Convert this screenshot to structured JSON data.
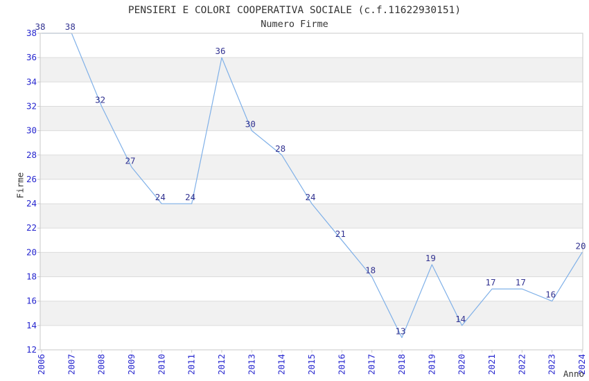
{
  "chart_data": {
    "type": "line",
    "title": "PENSIERI E COLORI COOPERATIVA SOCIALE (c.f.11622930151)",
    "subtitle": "Numero Firme",
    "xlabel": "Anno",
    "ylabel": "Firme",
    "categories": [
      "2006",
      "2007",
      "2008",
      "2009",
      "2010",
      "2011",
      "2012",
      "2013",
      "2014",
      "2015",
      "2016",
      "2017",
      "2018",
      "2019",
      "2020",
      "2021",
      "2022",
      "2023",
      "2024"
    ],
    "series": [
      {
        "name": "Numero Firme",
        "values": [
          38,
          38,
          32,
          27,
          24,
          24,
          36,
          30,
          28,
          24,
          21,
          18,
          13,
          19,
          14,
          17,
          17,
          16,
          20
        ]
      }
    ],
    "ylim": [
      12,
      38
    ],
    "ytick_step": 2,
    "grid": "horizontal-gridlines-with-alternating-bands",
    "legend_position": "none",
    "point_labels_visible": true,
    "colors": {
      "line": "#7fb0e8",
      "tick_label": "#2626cf",
      "point_label": "#333391",
      "gridline": "#dbdbdb",
      "band": "#f1f1f1",
      "border": "#c9c9c9",
      "title_text": "#333333",
      "background": "#ffffff"
    }
  }
}
